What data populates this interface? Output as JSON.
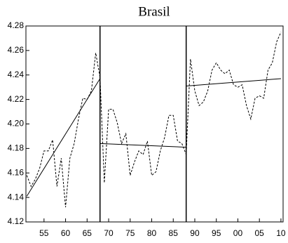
{
  "chart_data": {
    "type": "line",
    "title": "Brasil",
    "x": [
      1951,
      1952,
      1953,
      1954,
      1955,
      1956,
      1957,
      1958,
      1959,
      1960,
      1961,
      1962,
      1963,
      1964,
      1965,
      1966,
      1967,
      1968,
      1969,
      1970,
      1971,
      1972,
      1973,
      1974,
      1975,
      1976,
      1977,
      1978,
      1979,
      1980,
      1981,
      1982,
      1983,
      1984,
      1985,
      1986,
      1987,
      1988,
      1989,
      1990,
      1991,
      1992,
      1993,
      1994,
      1995,
      1996,
      1997,
      1998,
      1999,
      2000,
      2001,
      2002,
      2003,
      2004,
      2005,
      2006,
      2007,
      2008,
      2009,
      2010
    ],
    "series": [
      {
        "color": "#000000",
        "dashed": true,
        "values": [
          4.158,
          4.149,
          4.155,
          4.164,
          4.178,
          4.178,
          4.187,
          4.149,
          4.172,
          4.132,
          4.172,
          4.184,
          4.204,
          4.221,
          4.22,
          4.227,
          4.258,
          4.238,
          4.152,
          4.212,
          4.212,
          4.201,
          4.184,
          4.192,
          4.158,
          4.169,
          4.178,
          4.175,
          4.186,
          4.158,
          4.161,
          4.178,
          4.189,
          4.207,
          4.207,
          4.186,
          4.184,
          4.175,
          4.253,
          4.227,
          4.215,
          4.218,
          4.227,
          4.244,
          4.25,
          4.244,
          4.241,
          4.244,
          4.232,
          4.23,
          4.232,
          4.215,
          4.204,
          4.221,
          4.223,
          4.221,
          4.244,
          4.25,
          4.267,
          4.275
        ]
      },
      {
        "color": "#000000",
        "dashed": false,
        "x": [
          1951,
          1968
        ],
        "values": [
          4.141,
          4.237
        ]
      },
      {
        "color": "#000000",
        "dashed": false,
        "x": [
          1968,
          1988
        ],
        "values": [
          4.184,
          4.181
        ]
      },
      {
        "color": "#000000",
        "dashed": false,
        "x": [
          1988,
          2010
        ],
        "values": [
          4.231,
          4.237
        ]
      }
    ],
    "vlines": [
      1968,
      1988
    ],
    "xlim": [
      1950.8,
      2010.5
    ],
    "xticks": [
      {
        "value": 1955,
        "label": "55"
      },
      {
        "value": 1960,
        "label": "60"
      },
      {
        "value": 1965,
        "label": "65"
      },
      {
        "value": 1970,
        "label": "70"
      },
      {
        "value": 1975,
        "label": "75"
      },
      {
        "value": 1980,
        "label": "80"
      },
      {
        "value": 1985,
        "label": "85"
      },
      {
        "value": 1990,
        "label": "90"
      },
      {
        "value": 1995,
        "label": "95"
      },
      {
        "value": 2000,
        "label": "00"
      },
      {
        "value": 2005,
        "label": "05"
      },
      {
        "value": 2010,
        "label": "10"
      }
    ],
    "ylim": [
      4.12,
      4.28
    ],
    "yticks": [
      4.12,
      4.14,
      4.16,
      4.18,
      {
        "value": 4.2,
        "label": "4.20"
      },
      4.22,
      4.24,
      4.26,
      4.28
    ]
  }
}
